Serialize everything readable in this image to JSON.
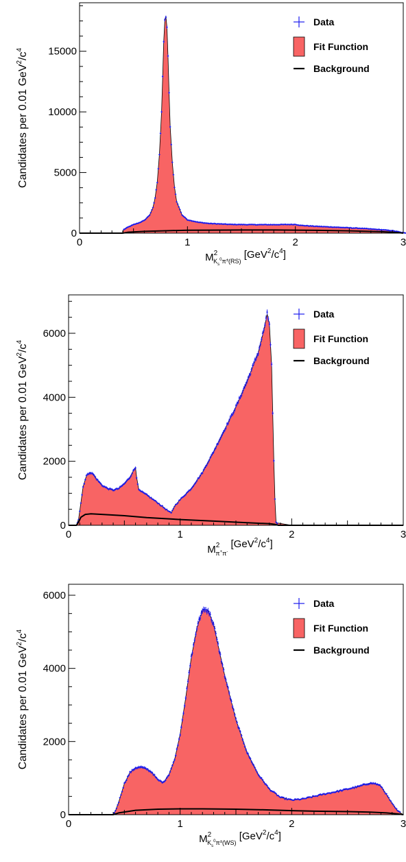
{
  "colors": {
    "fit_fill": "#f86464",
    "data_markers": "#1a1aee",
    "background_line": "#000000",
    "frame": "#000000"
  },
  "legend": {
    "data": "Data",
    "fit": "Fit Function",
    "background": "Background"
  },
  "chart_data": [
    {
      "type": "area",
      "ylabel": "Candidates per 0.01 GeV²/c⁴",
      "xlabel": "M²_{K_s^0 π^±(RS)} [GeV²/c⁴]",
      "xlabel_parts": {
        "m": "M",
        "sup": "2",
        "sub": "K",
        "subsub": "s",
        "subsup": "0",
        "subtail": "π",
        "subtailsup": "±",
        "subend": "(RS)",
        "unit_a": " [GeV",
        "unit_b": "2",
        "unit_c": "/c",
        "unit_d": "4",
        "unit_e": "]"
      },
      "ylabel_parts": {
        "a": "Candidates per 0.01 GeV",
        "b": "2",
        "c": "/c",
        "d": "4"
      },
      "xlim": [
        0,
        3
      ],
      "ylim": [
        0,
        19000
      ],
      "xticks": [
        0,
        1,
        2,
        3
      ],
      "xtick_labels": [
        "0",
        "1",
        "2",
        "3"
      ],
      "yticks": [
        0,
        5000,
        10000,
        15000
      ],
      "ytick_labels": [
        "0",
        "5000",
        "10000",
        "15000"
      ],
      "legend_position": "top-right",
      "series": [
        {
          "name": "Fit Function",
          "x": [
            0.0,
            0.4,
            0.41,
            0.45,
            0.5,
            0.55,
            0.6,
            0.65,
            0.68,
            0.7,
            0.72,
            0.74,
            0.76,
            0.77,
            0.78,
            0.79,
            0.8,
            0.81,
            0.82,
            0.83,
            0.84,
            0.86,
            0.88,
            0.9,
            0.95,
            1.0,
            1.1,
            1.2,
            1.4,
            1.6,
            1.8,
            2.0,
            2.05,
            2.2,
            2.4,
            2.6,
            2.8,
            2.9,
            2.95,
            3.0
          ],
          "y": [
            0,
            0,
            300,
            500,
            700,
            850,
            1050,
            1500,
            2100,
            2900,
            4200,
            6500,
            10000,
            12800,
            15800,
            17500,
            17900,
            17000,
            14500,
            11500,
            8800,
            5800,
            3800,
            2600,
            1500,
            1100,
            900,
            800,
            720,
            700,
            700,
            720,
            640,
            560,
            480,
            400,
            280,
            200,
            120,
            20
          ]
        },
        {
          "name": "Background",
          "x": [
            0.0,
            0.4,
            0.45,
            0.6,
            0.8,
            1.0,
            1.2,
            1.5,
            1.8,
            2.0,
            2.2,
            2.5,
            2.8,
            2.95,
            3.0
          ],
          "y": [
            0,
            0,
            80,
            150,
            200,
            240,
            250,
            260,
            260,
            250,
            230,
            190,
            120,
            50,
            0
          ]
        }
      ]
    },
    {
      "type": "area",
      "ylabel": "Candidates per 0.01 GeV²/c⁴",
      "xlabel": "M²_{π⁺π⁻} [GeV²/c⁴]",
      "xlabel_parts": {
        "m": "M",
        "sup": "2",
        "sub": "π",
        "subsup1": "+",
        "sub2": "π",
        "subsup2": "-",
        "unit_a": " [GeV",
        "unit_b": "2",
        "unit_c": "/c",
        "unit_d": "4",
        "unit_e": "]"
      },
      "ylabel_parts": {
        "a": "Candidates per 0.01 GeV",
        "b": "2",
        "c": "/c",
        "d": "4"
      },
      "xlim": [
        0,
        3
      ],
      "ylim": [
        0,
        7200
      ],
      "xticks": [
        0,
        1,
        2,
        3
      ],
      "xtick_labels": [
        "0",
        "1",
        "2",
        "3"
      ],
      "yticks": [
        0,
        2000,
        4000,
        6000
      ],
      "ytick_labels": [
        "0",
        "2000",
        "4000",
        "6000"
      ],
      "legend_position": "top-right",
      "series": [
        {
          "name": "Fit Function",
          "x": [
            0.0,
            0.07,
            0.09,
            0.11,
            0.13,
            0.16,
            0.19,
            0.22,
            0.25,
            0.3,
            0.35,
            0.4,
            0.45,
            0.5,
            0.55,
            0.58,
            0.6,
            0.61,
            0.63,
            0.7,
            0.8,
            0.88,
            0.92,
            0.95,
            1.0,
            1.1,
            1.2,
            1.3,
            1.4,
            1.5,
            1.6,
            1.7,
            1.75,
            1.78,
            1.8,
            1.82,
            1.83,
            1.84,
            1.85,
            1.86,
            2.0,
            3.0
          ],
          "y": [
            0,
            0,
            200,
            700,
            1200,
            1550,
            1650,
            1600,
            1450,
            1250,
            1150,
            1100,
            1150,
            1300,
            1500,
            1700,
            1800,
            1500,
            1100,
            950,
            700,
            480,
            380,
            600,
            800,
            1150,
            1650,
            2300,
            3000,
            3700,
            4500,
            5400,
            6100,
            6600,
            6300,
            5000,
            3500,
            2000,
            800,
            80,
            0,
            0
          ]
        },
        {
          "name": "Background",
          "x": [
            0.0,
            0.07,
            0.09,
            0.11,
            0.15,
            0.2,
            0.3,
            0.5,
            0.7,
            1.0,
            1.3,
            1.6,
            1.8,
            1.85,
            1.88,
            3.0
          ],
          "y": [
            0,
            0,
            100,
            250,
            340,
            360,
            340,
            300,
            240,
            180,
            130,
            80,
            50,
            30,
            0,
            0
          ]
        }
      ]
    },
    {
      "type": "area",
      "ylabel": "Candidates per 0.01 GeV²/c⁴",
      "xlabel": "M²_{K_s^0 π^±(WS)} [GeV²/c⁴]",
      "xlabel_parts": {
        "m": "M",
        "sup": "2",
        "sub": "K",
        "subsub": "s",
        "subsup": "0",
        "subtail": "π",
        "subtailsup": "±",
        "subend": "(WS)",
        "unit_a": " [GeV",
        "unit_b": "2",
        "unit_c": "/c",
        "unit_d": "4",
        "unit_e": "]"
      },
      "ylabel_parts": {
        "a": "Candidates per 0.01 GeV",
        "b": "2",
        "c": "/c",
        "d": "4"
      },
      "xlim": [
        0,
        3
      ],
      "ylim": [
        0,
        6300
      ],
      "xticks": [
        0,
        1,
        2,
        3
      ],
      "xtick_labels": [
        "0",
        "1",
        "2",
        "3"
      ],
      "yticks": [
        0,
        2000,
        4000,
        6000
      ],
      "ytick_labels": [
        "0",
        "2000",
        "4000",
        "6000"
      ],
      "legend_position": "top-right",
      "series": [
        {
          "name": "Fit Function",
          "x": [
            0.0,
            0.4,
            0.42,
            0.45,
            0.5,
            0.55,
            0.6,
            0.65,
            0.7,
            0.75,
            0.8,
            0.85,
            0.9,
            0.95,
            1.0,
            1.05,
            1.1,
            1.15,
            1.2,
            1.25,
            1.3,
            1.35,
            1.4,
            1.5,
            1.6,
            1.7,
            1.8,
            1.9,
            2.0,
            2.1,
            2.2,
            2.3,
            2.4,
            2.5,
            2.6,
            2.65,
            2.7,
            2.75,
            2.8,
            2.85,
            2.9,
            2.95,
            3.0
          ],
          "y": [
            0,
            0,
            100,
            350,
            850,
            1150,
            1280,
            1300,
            1250,
            1150,
            950,
            880,
            1100,
            1500,
            2200,
            3200,
            4300,
            5100,
            5600,
            5600,
            5200,
            4500,
            3800,
            2600,
            1700,
            1100,
            700,
            470,
            400,
            430,
            500,
            570,
            630,
            700,
            770,
            820,
            860,
            850,
            780,
            550,
            300,
            100,
            0
          ]
        },
        {
          "name": "Background",
          "x": [
            0.0,
            0.4,
            0.45,
            0.6,
            0.8,
            1.0,
            1.2,
            1.5,
            1.8,
            2.0,
            2.2,
            2.5,
            2.7,
            2.85,
            2.95,
            3.0
          ],
          "y": [
            0,
            0,
            50,
            120,
            150,
            160,
            160,
            150,
            130,
            110,
            95,
            85,
            70,
            50,
            20,
            0
          ]
        }
      ]
    }
  ]
}
